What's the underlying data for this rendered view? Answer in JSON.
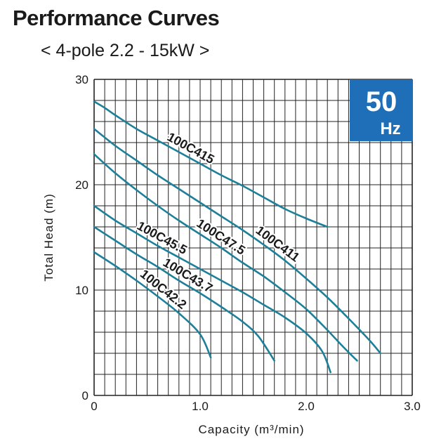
{
  "title": "Performance Curves",
  "subtitle": "< 4-pole  2.2 - 15kW >",
  "badge": {
    "number": "50",
    "unit": "Hz",
    "color": "#1e6fb8"
  },
  "colors": {
    "curve": "#1e7f99",
    "grid": "#222222"
  },
  "chart_data": {
    "type": "line",
    "title": "Performance Curves",
    "subtitle": "< 4-pole  2.2 - 15kW >",
    "xlabel": "Capacity (m³/min)",
    "ylabel": "Total Head (m)",
    "xlim": [
      0,
      3.0
    ],
    "ylim": [
      0,
      30
    ],
    "x_ticks": [
      0,
      1.0,
      2.0,
      3.0
    ],
    "x_tick_labels": [
      "0",
      "1.0",
      "2.0",
      "3.0"
    ],
    "y_ticks": [
      0,
      10,
      20,
      30
    ],
    "y_tick_labels": [
      "0",
      "10",
      "20",
      "30"
    ],
    "grid": true,
    "grid_step_x": 0.1,
    "grid_step_y": 2,
    "series": [
      {
        "name": "100C415",
        "x": [
          0,
          0.1,
          0.2,
          0.4,
          0.6,
          0.8,
          1.0,
          1.2,
          1.4,
          1.6,
          1.8,
          2.0,
          2.2
        ],
        "y": [
          27.9,
          27.3,
          26.6,
          25.3,
          24.2,
          23.1,
          22.0,
          20.9,
          19.9,
          18.8,
          17.7,
          16.8,
          16.0
        ],
        "label_at": 0.87
      },
      {
        "name": "100C411",
        "x": [
          0,
          0.2,
          0.4,
          0.6,
          0.8,
          1.0,
          1.2,
          1.4,
          1.6,
          1.8,
          2.0,
          2.2,
          2.4,
          2.6,
          2.7
        ],
        "y": [
          25.3,
          23.7,
          22.3,
          20.9,
          19.6,
          18.3,
          17.0,
          15.7,
          14.3,
          12.8,
          11.1,
          9.3,
          7.3,
          5.2,
          4.0
        ],
        "label_at": 1.68
      },
      {
        "name": "100C47.5",
        "x": [
          0,
          0.2,
          0.4,
          0.6,
          0.8,
          1.0,
          1.2,
          1.4,
          1.6,
          1.8,
          2.0,
          2.2,
          2.35,
          2.48
        ],
        "y": [
          22.9,
          21.1,
          19.5,
          18.0,
          16.6,
          15.3,
          14.0,
          12.6,
          11.3,
          9.8,
          8.2,
          6.2,
          4.6,
          3.3
        ],
        "label_at": 1.15
      },
      {
        "name": "100C45.5",
        "x": [
          0,
          0.2,
          0.4,
          0.6,
          0.8,
          1.0,
          1.2,
          1.4,
          1.6,
          1.8,
          2.0,
          2.15,
          2.23
        ],
        "y": [
          18.0,
          16.6,
          15.4,
          14.2,
          13.1,
          12.0,
          10.9,
          9.8,
          8.6,
          7.4,
          5.9,
          4.2,
          2.2
        ],
        "label_at": 0.6
      },
      {
        "name": "100C43.7",
        "x": [
          0,
          0.2,
          0.4,
          0.6,
          0.8,
          1.0,
          1.2,
          1.4,
          1.55,
          1.7
        ],
        "y": [
          16.0,
          14.7,
          13.4,
          12.2,
          10.9,
          9.7,
          8.4,
          7.0,
          5.6,
          3.3
        ],
        "label_at": 0.84
      },
      {
        "name": "100C42.2",
        "x": [
          0,
          0.2,
          0.4,
          0.6,
          0.8,
          1.0,
          1.1
        ],
        "y": [
          13.6,
          12.3,
          10.9,
          9.4,
          7.8,
          5.8,
          3.6
        ],
        "label_at": 0.6
      }
    ]
  }
}
